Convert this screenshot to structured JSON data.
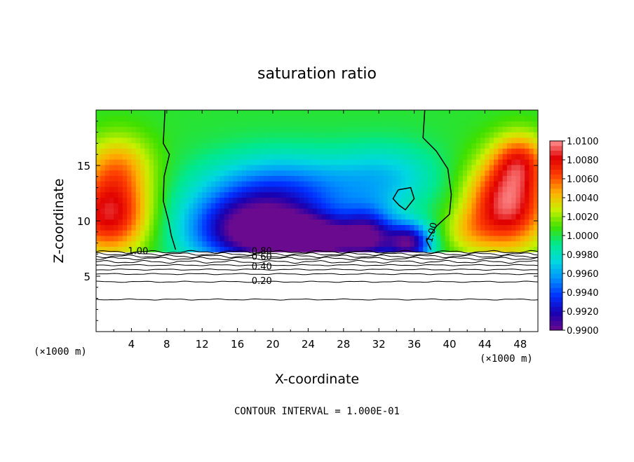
{
  "chart_data": {
    "type": "heatmap",
    "title": "saturation ratio",
    "xlabel": "X-coordinate",
    "ylabel": "Z-coordinate",
    "x_unit_left": "(×1000 m)",
    "x_unit_right": "(×1000 m)",
    "xlim": [
      0,
      50
    ],
    "ylim": [
      0,
      20
    ],
    "x_ticks": [
      4,
      8,
      12,
      16,
      20,
      24,
      28,
      32,
      36,
      40,
      44,
      48
    ],
    "x_tick_labels": [
      "4",
      "8",
      "12",
      "16",
      "20",
      "24",
      "28",
      "32",
      "36",
      "40",
      "44",
      "48"
    ],
    "y_ticks": [
      5,
      10,
      15
    ],
    "y_tick_labels": [
      "5",
      "10",
      "15"
    ],
    "colorbar": {
      "min": 0.99,
      "max": 1.01,
      "tick_values": [
        1.01,
        1.008,
        1.006,
        1.004,
        1.002,
        1.0,
        0.998,
        0.996,
        0.994,
        0.992,
        0.99
      ],
      "tick_labels": [
        "1.0100",
        "1.0080",
        "1.0060",
        "1.0040",
        "1.0020",
        "1.0000",
        "0.9980",
        "0.9960",
        "0.9940",
        "0.9920",
        "0.9900"
      ],
      "colors": [
        "#6a0a8e",
        "#1a00b0",
        "#0030ff",
        "#0090ff",
        "#00d8e0",
        "#00e890",
        "#3ee000",
        "#c8f000",
        "#ffb000",
        "#ff4000",
        "#e00000",
        "#ff9090"
      ]
    },
    "contour_interval_text": "CONTOUR INTERVAL = 1.000E-01",
    "contour_labels": [
      {
        "text": "1.00",
        "x": 3.6,
        "z": 7.0
      },
      {
        "text": "0.80",
        "x": 17.6,
        "z": 7.0
      },
      {
        "text": "0.60",
        "x": 17.6,
        "z": 6.5
      },
      {
        "text": "0.40",
        "x": 17.6,
        "z": 5.6
      },
      {
        "text": "0.20",
        "x": 17.6,
        "z": 4.3
      },
      {
        "text": "1.00",
        "x": 38.0,
        "z": 8.0
      }
    ],
    "lower_contour_levels_z": [
      7.2,
      7.0,
      6.8,
      6.6,
      6.3,
      6.0,
      5.6,
      5.2,
      4.5,
      2.9
    ],
    "ground_boundary_z": 7.2
  }
}
